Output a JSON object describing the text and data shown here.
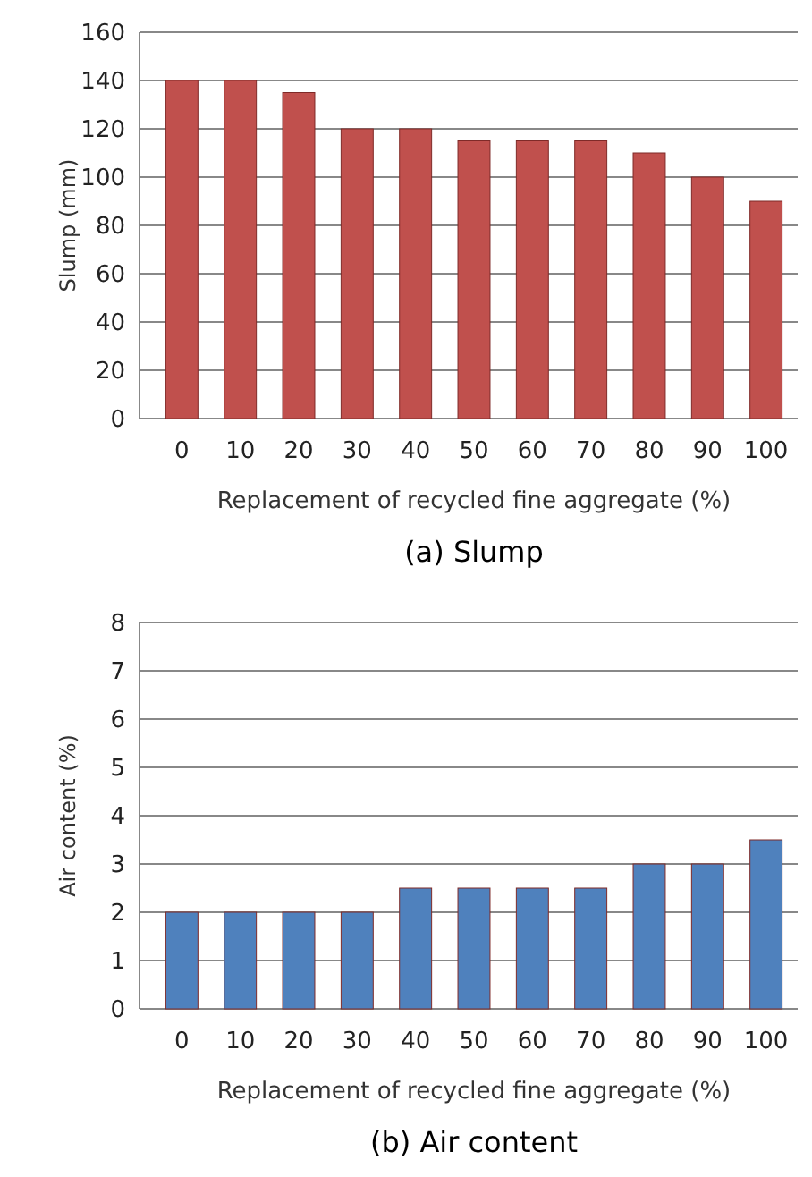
{
  "chart_data": [
    {
      "type": "bar",
      "title": "(a)  Slump",
      "xlabel": "Replacement of recycled fine aggregate (%)",
      "ylabel": "Slump  (mm)",
      "categories": [
        "0",
        "10",
        "20",
        "30",
        "40",
        "50",
        "60",
        "70",
        "80",
        "90",
        "100"
      ],
      "values": [
        140,
        140,
        135,
        120,
        120,
        115,
        115,
        115,
        110,
        100,
        90
      ],
      "color": "#c0504d",
      "ylim": [
        0,
        160
      ],
      "yticks": [
        0,
        20,
        40,
        60,
        80,
        100,
        120,
        140,
        160
      ],
      "grid": "y"
    },
    {
      "type": "bar",
      "title": "(b)  Air content",
      "xlabel": "Replacement of recycled fine aggregate (%)",
      "ylabel": "Air content (%)",
      "categories": [
        "0",
        "10",
        "20",
        "30",
        "40",
        "50",
        "60",
        "70",
        "80",
        "90",
        "100"
      ],
      "values": [
        2,
        2,
        2,
        2,
        2.5,
        2.5,
        2.5,
        2.5,
        3,
        3,
        3.5
      ],
      "color": "#4f81bd",
      "ylim": [
        0,
        8
      ],
      "yticks": [
        0,
        1,
        2,
        3,
        4,
        5,
        6,
        7,
        8
      ],
      "grid": "y"
    }
  ]
}
